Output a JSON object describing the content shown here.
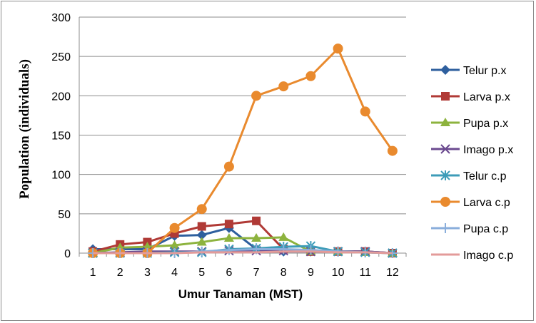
{
  "chart_data": {
    "type": "line",
    "xlabel": "Umur Tanaman (MST)",
    "ylabel": "Population (individuals)",
    "ylim": [
      0,
      300
    ],
    "yticks": [
      0,
      50,
      100,
      150,
      200,
      250,
      300
    ],
    "categories": [
      "1",
      "2",
      "3",
      "4",
      "5",
      "6",
      "7",
      "8",
      "9",
      "10",
      "11",
      "12"
    ],
    "grid": "horizontal",
    "legend": "right",
    "series": [
      {
        "name": "Telur p.x",
        "color": "#2e5f9e",
        "marker": "diamond",
        "values": [
          5,
          5,
          5,
          22,
          23,
          32,
          5,
          2,
          2,
          2,
          2,
          0
        ]
      },
      {
        "name": "Larva p.x",
        "color": "#b03a36",
        "marker": "square",
        "values": [
          2,
          11,
          14,
          25,
          34,
          37,
          41,
          5,
          2,
          2,
          2,
          0
        ]
      },
      {
        "name": "Pupa p.x",
        "color": "#8db33e",
        "marker": "triangle",
        "values": [
          0,
          7,
          8,
          10,
          14,
          19,
          19,
          20,
          2,
          2,
          1,
          0
        ]
      },
      {
        "name": "Imago p.x",
        "color": "#6b4a8f",
        "marker": "x",
        "values": [
          0,
          1,
          2,
          2,
          2,
          3,
          3,
          3,
          2,
          2,
          2,
          0
        ]
      },
      {
        "name": "Telur c.p",
        "color": "#3d9cb8",
        "marker": "star",
        "values": [
          0,
          0,
          0,
          1,
          1,
          5,
          6,
          8,
          9,
          2,
          1,
          0
        ]
      },
      {
        "name": "Larva c.p",
        "color": "#e98a2e",
        "marker": "circle",
        "values": [
          0,
          0,
          0,
          32,
          56,
          110,
          200,
          212,
          225,
          260,
          180,
          130
        ]
      },
      {
        "name": "Pupa c.p",
        "color": "#8aaedb",
        "marker": "plus",
        "values": [
          0,
          0,
          0,
          0,
          2,
          4,
          5,
          5,
          4,
          2,
          1,
          0
        ]
      },
      {
        "name": "Imago c.p",
        "color": "#e39b9a",
        "marker": "none",
        "values": [
          0,
          0,
          0,
          0,
          1,
          1,
          1,
          2,
          2,
          1,
          1,
          0
        ]
      }
    ]
  }
}
